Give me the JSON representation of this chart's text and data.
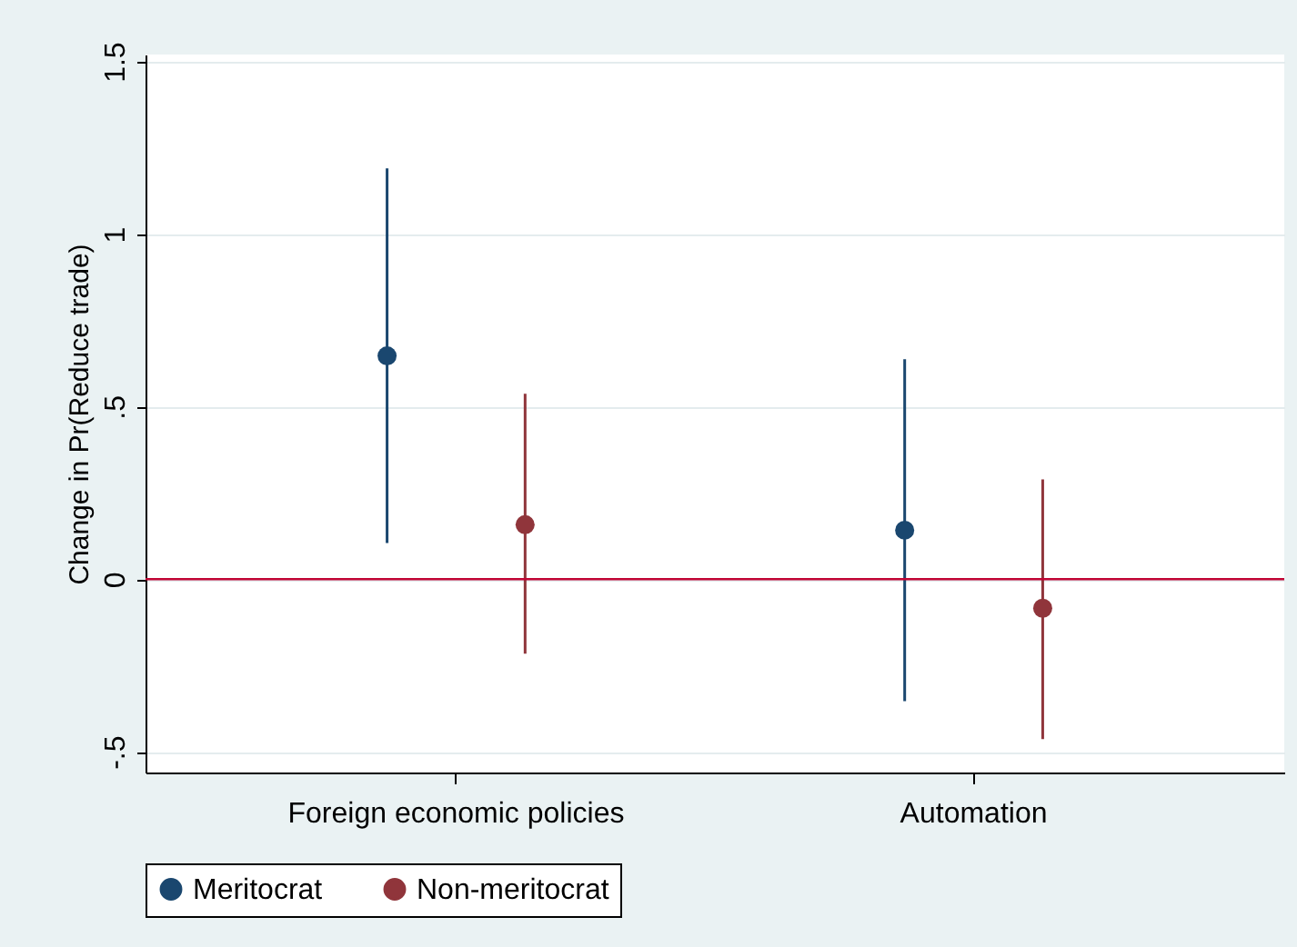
{
  "chart_data": {
    "type": "scatter",
    "ylabel": "Change in Pr(Reduce trade)",
    "categories": [
      "Foreign economic policies",
      "Automation"
    ],
    "series": [
      {
        "name": "Meritocrat",
        "color": "#1a476f",
        "values": [
          0.647,
          0.142
        ],
        "errors": [
          [
            0.105,
            1.19
          ],
          [
            -0.353,
            0.637
          ]
        ]
      },
      {
        "name": "Non-meritocrat",
        "color": "#90353b",
        "values": [
          0.158,
          -0.084
        ],
        "errors": [
          [
            -0.216,
            0.537
          ],
          [
            -0.463,
            0.289
          ]
        ]
      }
    ],
    "ylim": [
      -0.56,
      1.52
    ],
    "yticks": [
      {
        "value": -0.5,
        "label": "-.5"
      },
      0,
      {
        "value": 0.5,
        "label": ".5"
      },
      1,
      {
        "value": 1.5,
        "label": "1.5"
      }
    ],
    "ref_lines": [
      {
        "axis": "y",
        "value": 0,
        "color": "#c10534"
      }
    ],
    "grid": "y",
    "legend": "bottom",
    "marker": "circle"
  }
}
